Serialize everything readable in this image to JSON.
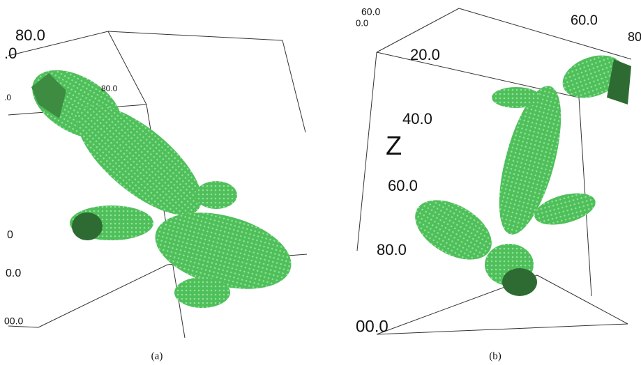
{
  "panels": [
    {
      "caption": "(a)",
      "labels": [
        "80.0",
        ".0",
        ".0",
        "80.0",
        "0",
        "0.0",
        "00.0"
      ]
    },
    {
      "caption": "(b)",
      "labels": [
        "60.0",
        "0.0",
        "60.0",
        "80",
        "20.0",
        "40.0",
        "Z",
        "60.0",
        "80.0",
        "00.0"
      ]
    }
  ]
}
